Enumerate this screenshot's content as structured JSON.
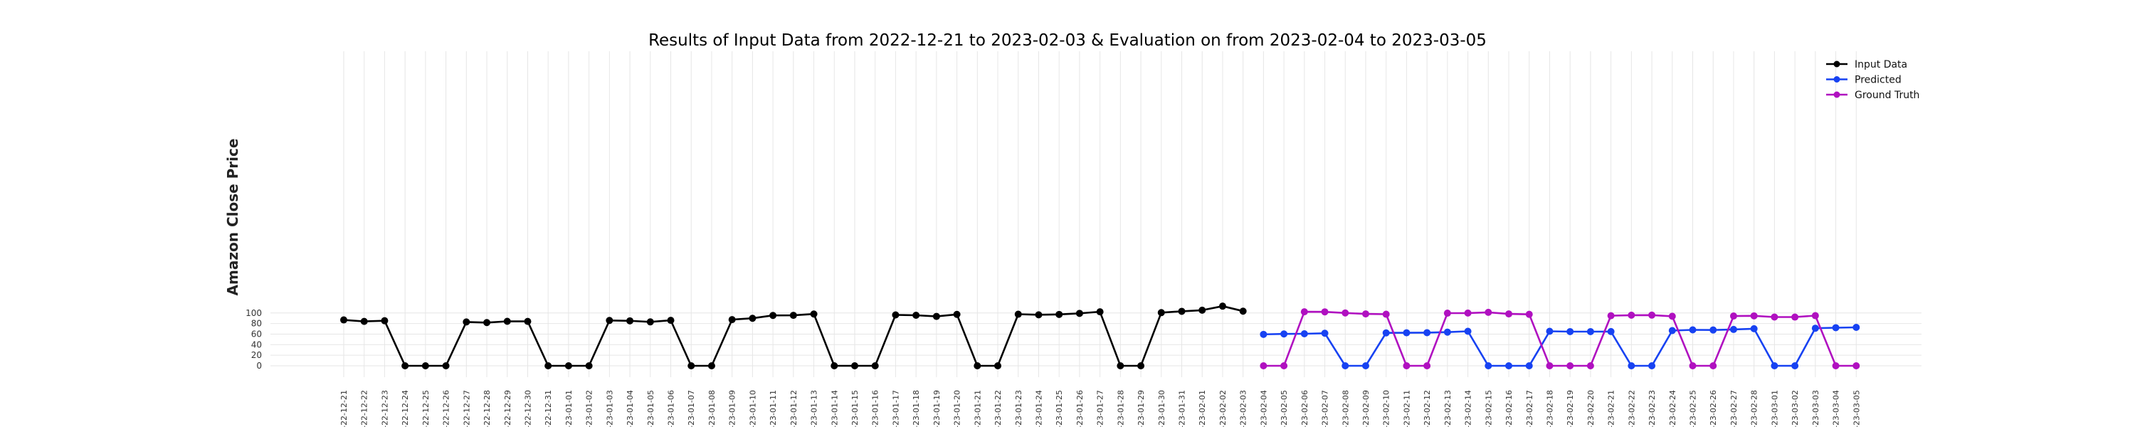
{
  "chart_data": {
    "type": "line",
    "title": "Results of Input Data from 2022-12-21 to 2023-02-03 & Evaluation on from 2023-02-04 to 2023-03-05",
    "xlabel": "",
    "ylabel": "Amazon Close Price",
    "ylim": [
      -3,
      118
    ],
    "yticks": [
      0,
      20,
      40,
      60,
      80,
      100
    ],
    "grid": true,
    "legend_position": "top-right",
    "x": [
      "2022-12-21",
      "2022-12-22",
      "2022-12-23",
      "2022-12-24",
      "2022-12-25",
      "2022-12-26",
      "2022-12-27",
      "2022-12-28",
      "2022-12-29",
      "2022-12-30",
      "2022-12-31",
      "2023-01-01",
      "2023-01-02",
      "2023-01-03",
      "2023-01-04",
      "2023-01-05",
      "2023-01-06",
      "2023-01-07",
      "2023-01-08",
      "2023-01-09",
      "2023-01-10",
      "2023-01-11",
      "2023-01-12",
      "2023-01-13",
      "2023-01-14",
      "2023-01-15",
      "2023-01-16",
      "2023-01-17",
      "2023-01-18",
      "2023-01-19",
      "2023-01-20",
      "2023-01-21",
      "2023-01-22",
      "2023-01-23",
      "2023-01-24",
      "2023-01-25",
      "2023-01-26",
      "2023-01-27",
      "2023-01-28",
      "2023-01-29",
      "2023-01-30",
      "2023-01-31",
      "2023-02-01",
      "2023-02-02",
      "2023-02-03",
      "2023-02-04",
      "2023-02-05",
      "2023-02-06",
      "2023-02-07",
      "2023-02-08",
      "2023-02-09",
      "2023-02-10",
      "2023-02-11",
      "2023-02-12",
      "2023-02-13",
      "2023-02-14",
      "2023-02-15",
      "2023-02-16",
      "2023-02-17",
      "2023-02-18",
      "2023-02-19",
      "2023-02-20",
      "2023-02-21",
      "2023-02-22",
      "2023-02-23",
      "2023-02-24",
      "2023-02-25",
      "2023-02-26",
      "2023-02-27",
      "2023-02-28",
      "2023-03-01",
      "2023-03-02",
      "2023-03-03",
      "2023-03-04",
      "2023-03-05"
    ],
    "xtick_labels": [
      "-22-12-21",
      "-22-12-22",
      "-22-12-23",
      "-22-12-24",
      "-22-12-25",
      "-22-12-26",
      "-22-12-27",
      "-22-12-28",
      "-22-12-29",
      "-22-12-30",
      "-22-12-31",
      "-23-01-01",
      "-23-01-02",
      "-23-01-03",
      "-23-01-04",
      "-23-01-05",
      "-23-01-06",
      "-23-01-07",
      "-23-01-08",
      "-23-01-09",
      "-23-01-10",
      "-23-01-11",
      "-23-01-12",
      "-23-01-13",
      "-23-01-14",
      "-23-01-15",
      "-23-01-16",
      "-23-01-17",
      "-23-01-18",
      "-23-01-19",
      "-23-01-20",
      "-23-01-21",
      "-23-01-22",
      "-23-01-23",
      "-23-01-24",
      "-23-01-25",
      "-23-01-26",
      "-23-01-27",
      "-23-01-28",
      "-23-01-29",
      "-23-01-30",
      "-23-01-31",
      "-23-02-01",
      "-23-02-02",
      "-23-02-03",
      "-23-02-04",
      "-23-02-05",
      "-23-02-06",
      "-23-02-07",
      "-23-02-08",
      "-23-02-09",
      "-23-02-10",
      "-23-02-11",
      "-23-02-12",
      "-23-02-13",
      "-23-02-14",
      "-23-02-15",
      "-23-02-16",
      "-23-02-17",
      "-23-02-18",
      "-23-02-19",
      "-23-02-20",
      "-23-02-21",
      "-23-02-22",
      "-23-02-23",
      "-23-02-24",
      "-23-02-25",
      "-23-02-26",
      "-23-02-27",
      "-23-02-28",
      "-23-03-01",
      "-23-03-02",
      "-23-03-03",
      "-23-03-04",
      "-23-03-05"
    ],
    "series": [
      {
        "name": "Input Data",
        "color": "#000000",
        "x": [
          "2022-12-21",
          "2022-12-22",
          "2022-12-23",
          "2022-12-24",
          "2022-12-25",
          "2022-12-26",
          "2022-12-27",
          "2022-12-28",
          "2022-12-29",
          "2022-12-30",
          "2022-12-31",
          "2023-01-01",
          "2023-01-02",
          "2023-01-03",
          "2023-01-04",
          "2023-01-05",
          "2023-01-06",
          "2023-01-07",
          "2023-01-08",
          "2023-01-09",
          "2023-01-10",
          "2023-01-11",
          "2023-01-12",
          "2023-01-13",
          "2023-01-14",
          "2023-01-15",
          "2023-01-16",
          "2023-01-17",
          "2023-01-18",
          "2023-01-19",
          "2023-01-20",
          "2023-01-21",
          "2023-01-22",
          "2023-01-23",
          "2023-01-24",
          "2023-01-25",
          "2023-01-26",
          "2023-01-27",
          "2023-01-28",
          "2023-01-29",
          "2023-01-30",
          "2023-01-31",
          "2023-02-01",
          "2023-02-02",
          "2023-02-03"
        ],
        "values": [
          86.8,
          84.0,
          85.3,
          0,
          0,
          0,
          83.0,
          81.8,
          84.2,
          84.0,
          0,
          0,
          0,
          85.8,
          85.1,
          83.1,
          86.0,
          0,
          0,
          87.4,
          89.9,
          95.3,
          95.5,
          98.0,
          0,
          0,
          0,
          96.3,
          95.6,
          93.5,
          97.3,
          0,
          0,
          97.6,
          96.5,
          97.2,
          99.2,
          102.2,
          0,
          0,
          100.6,
          103.1,
          105.2,
          112.9,
          103.4
        ]
      },
      {
        "name": "Predicted",
        "color": "#1742f2",
        "x": [
          "2023-02-04",
          "2023-02-05",
          "2023-02-06",
          "2023-02-07",
          "2023-02-08",
          "2023-02-09",
          "2023-02-10",
          "2023-02-11",
          "2023-02-12",
          "2023-02-13",
          "2023-02-14",
          "2023-02-15",
          "2023-02-16",
          "2023-02-17",
          "2023-02-18",
          "2023-02-19",
          "2023-02-20",
          "2023-02-21",
          "2023-02-22",
          "2023-02-23",
          "2023-02-24",
          "2023-02-25",
          "2023-02-26",
          "2023-02-27",
          "2023-02-28",
          "2023-03-01",
          "2023-03-02",
          "2023-03-03",
          "2023-03-04",
          "2023-03-05"
        ],
        "values": [
          59.5,
          60.3,
          60.6,
          61.6,
          0,
          0,
          62.3,
          62.5,
          62.7,
          63.7,
          65.3,
          0,
          0,
          0,
          65.3,
          64.7,
          64.7,
          64.8,
          0,
          0,
          66.7,
          68.0,
          67.8,
          68.8,
          70.2,
          0,
          0,
          71.1,
          72.1,
          72.7
        ]
      },
      {
        "name": "Ground Truth",
        "color": "#b010c0",
        "x": [
          "2023-02-04",
          "2023-02-05",
          "2023-02-06",
          "2023-02-07",
          "2023-02-08",
          "2023-02-09",
          "2023-02-10",
          "2023-02-11",
          "2023-02-12",
          "2023-02-13",
          "2023-02-14",
          "2023-02-15",
          "2023-02-16",
          "2023-02-17",
          "2023-02-18",
          "2023-02-19",
          "2023-02-20",
          "2023-02-21",
          "2023-02-22",
          "2023-02-23",
          "2023-02-24",
          "2023-02-25",
          "2023-02-26",
          "2023-02-27",
          "2023-02-28",
          "2023-03-01",
          "2023-03-02",
          "2023-03-03",
          "2023-03-04",
          "2023-03-05"
        ],
        "values": [
          0,
          0,
          102.2,
          102.1,
          100.0,
          98.2,
          97.6,
          0,
          0,
          99.6,
          99.8,
          101.2,
          98.2,
          97.4,
          0,
          0,
          0,
          94.8,
          95.8,
          95.9,
          93.8,
          0,
          0,
          94.2,
          94.5,
          92.3,
          92.2,
          94.9,
          0,
          0
        ]
      }
    ]
  }
}
